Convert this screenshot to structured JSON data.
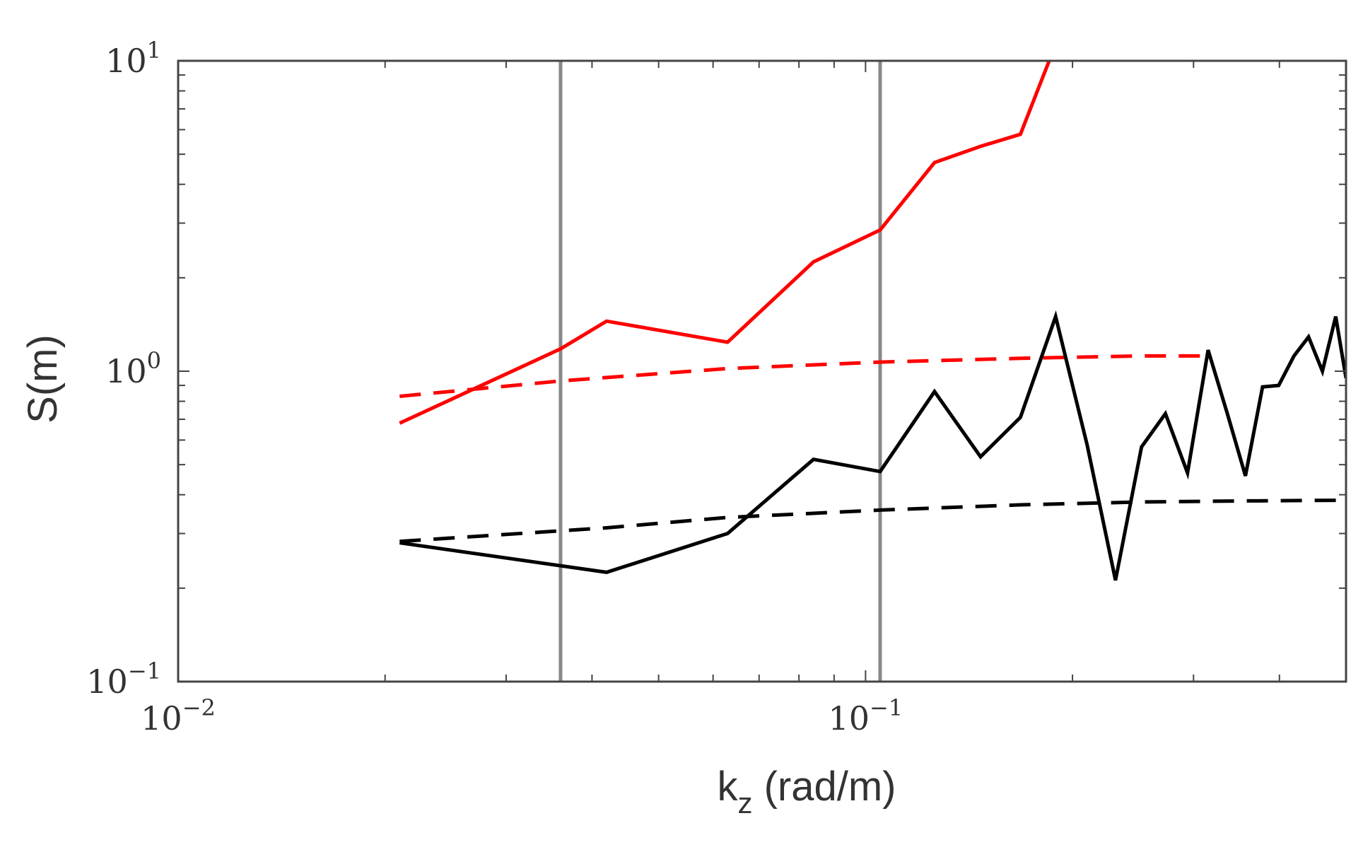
{
  "chart_data": {
    "type": "line",
    "title": "",
    "xlabel": {
      "main": "k",
      "sub": "z",
      "rest": " (rad/m)"
    },
    "ylabel": "S(m)",
    "xscale": "log",
    "yscale": "log",
    "xlim": [
      0.01,
      0.5
    ],
    "ylim": [
      0.1,
      10
    ],
    "grid": false,
    "legend": "none",
    "x_ticks": [
      {
        "base": "10",
        "exp": "−2",
        "value": 0.01
      },
      {
        "base": "10",
        "exp": "−1",
        "value": 0.1
      }
    ],
    "y_ticks": [
      {
        "base": "10",
        "exp": "−1",
        "value": 0.1
      },
      {
        "base": "10",
        "exp": "0",
        "value": 1
      },
      {
        "base": "10",
        "exp": "1",
        "value": 10
      }
    ],
    "vertical_lines": [
      0.036,
      0.105
    ],
    "vertical_line_color": "#888888",
    "series": [
      {
        "color": "#ff0000",
        "dashed": false,
        "x": [
          0.021,
          0.036,
          0.042,
          0.063,
          0.084,
          0.105,
          0.126,
          0.147,
          0.168,
          0.185
        ],
        "y": [
          0.68,
          1.18,
          1.45,
          1.24,
          2.25,
          2.85,
          4.7,
          5.3,
          5.8,
          10.0
        ]
      },
      {
        "color": "#ff0000",
        "dashed": true,
        "x": [
          0.021,
          0.036,
          0.063,
          0.105,
          0.168,
          0.25,
          0.31
        ],
        "y": [
          0.83,
          0.93,
          1.02,
          1.07,
          1.1,
          1.12,
          1.12
        ]
      },
      {
        "color": "#000000",
        "dashed": false,
        "x": [
          0.021,
          0.042,
          0.063,
          0.084,
          0.105,
          0.126,
          0.147,
          0.168,
          0.189,
          0.21,
          0.231,
          0.252,
          0.273,
          0.294,
          0.315,
          0.336,
          0.357,
          0.378,
          0.399,
          0.42,
          0.441,
          0.462,
          0.483,
          0.5
        ],
        "y": [
          0.28,
          0.225,
          0.3,
          0.52,
          0.475,
          0.86,
          0.53,
          0.71,
          1.5,
          0.58,
          0.212,
          0.57,
          0.73,
          0.47,
          1.17,
          0.73,
          0.46,
          0.89,
          0.9,
          1.12,
          1.29,
          1.0,
          1.5,
          0.95
        ]
      },
      {
        "color": "#000000",
        "dashed": true,
        "x": [
          0.021,
          0.042,
          0.063,
          0.105,
          0.168,
          0.25,
          0.35,
          0.5
        ],
        "y": [
          0.283,
          0.313,
          0.338,
          0.357,
          0.371,
          0.379,
          0.382,
          0.384
        ]
      }
    ]
  }
}
